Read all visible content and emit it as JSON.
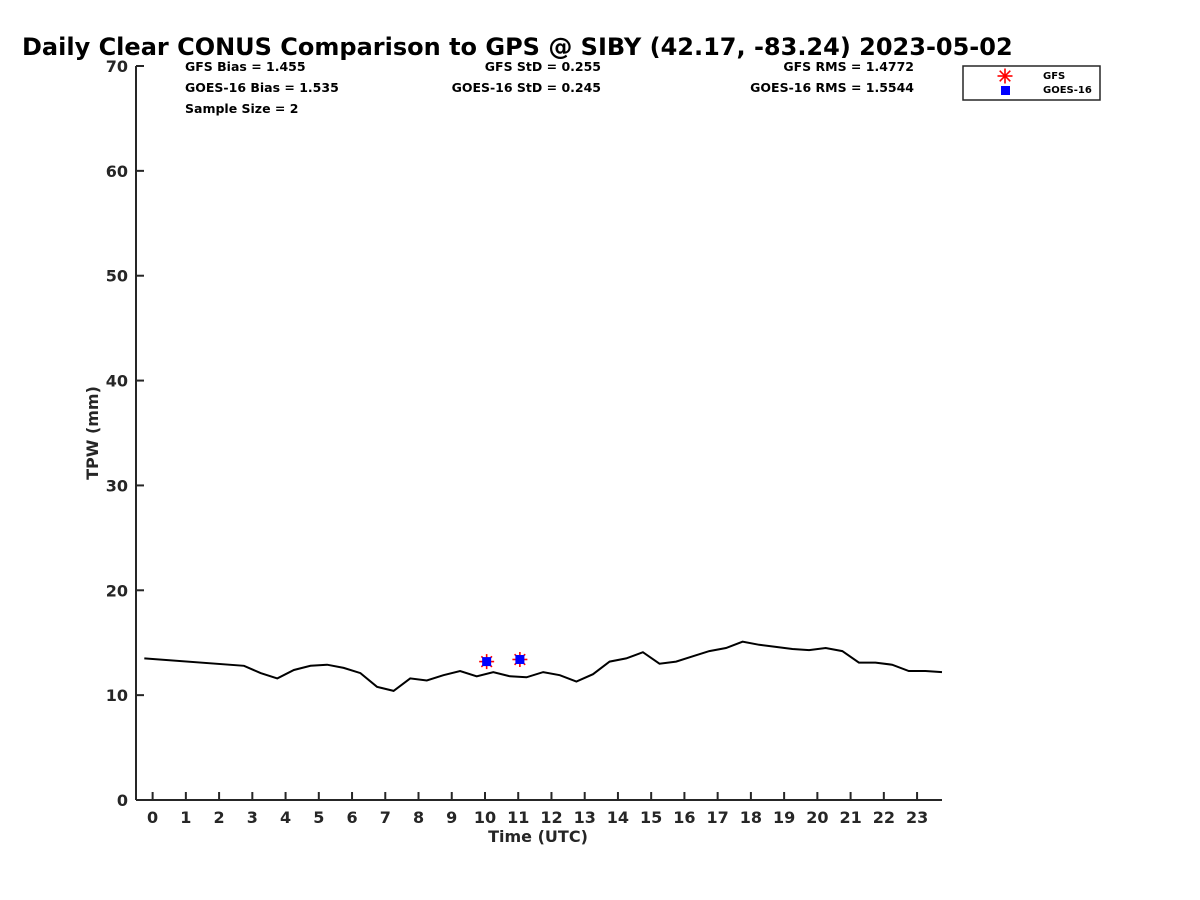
{
  "chart_data": {
    "type": "line",
    "title": "Daily Clear CONUS Comparison to GPS @ SIBY (42.17, -83.24) 2023-05-02",
    "xlabel": "Time (UTC)",
    "ylabel": "TPW (mm)",
    "xlim": [
      -0.5,
      23.75
    ],
    "ylim": [
      0,
      70
    ],
    "x_ticks": [
      "0",
      "1",
      "2",
      "3",
      "4",
      "5",
      "6",
      "7",
      "8",
      "9",
      "10",
      "11",
      "12",
      "13",
      "14",
      "15",
      "16",
      "17",
      "18",
      "19",
      "20",
      "21",
      "22",
      "23"
    ],
    "y_ticks": [
      "0",
      "10",
      "20",
      "30",
      "40",
      "50",
      "60",
      "70"
    ],
    "grid": false,
    "legend_position": "top-right",
    "stats": {
      "gfs_bias": "GFS Bias = 1.455",
      "goes_bias": "GOES-16 Bias = 1.535",
      "sample_size": "Sample Size = 2",
      "gfs_std": "GFS StD = 0.255",
      "goes_std": "GOES-16 StD = 0.245",
      "gfs_rms": "GFS RMS = 1.4772",
      "goes_rms": "GOES-16 RMS = 1.5544"
    },
    "gps_line": {
      "color": "#000000",
      "x": [
        -0.25,
        2.75,
        3.25,
        3.75,
        4.25,
        4.75,
        5.25,
        5.75,
        6.25,
        6.75,
        7.25,
        7.75,
        8.25,
        8.75,
        9.25,
        9.75,
        10.25,
        10.75,
        11.25,
        11.75,
        12.25,
        12.75,
        13.25,
        13.75,
        14.25,
        14.75,
        15.25,
        15.75,
        16.25,
        16.75,
        17.25,
        17.75,
        18.25,
        18.75,
        19.25,
        19.75,
        20.25,
        20.75,
        21.25,
        21.75,
        22.25,
        22.75,
        23.25,
        23.75
      ],
      "y": [
        13.5,
        12.8,
        12.1,
        11.6,
        12.4,
        12.8,
        12.9,
        12.6,
        12.1,
        10.8,
        10.4,
        11.6,
        11.4,
        11.9,
        12.3,
        11.8,
        12.2,
        11.8,
        11.7,
        12.2,
        11.9,
        11.3,
        12.0,
        13.2,
        13.5,
        14.1,
        13.0,
        13.2,
        13.7,
        14.2,
        14.5,
        15.1,
        14.8,
        14.6,
        14.4,
        14.3,
        14.5,
        14.2,
        13.1,
        13.1,
        12.9,
        12.3,
        12.3,
        12.2
      ]
    },
    "series": [
      {
        "name": "GFS",
        "marker": "asterisk",
        "color": "#ff0000",
        "x": [
          10.05,
          11.05
        ],
        "y": [
          13.2,
          13.4
        ]
      },
      {
        "name": "GOES-16",
        "marker": "square",
        "color": "#0000ff",
        "x": [
          10.05,
          11.05
        ],
        "y": [
          13.2,
          13.4
        ]
      }
    ]
  }
}
